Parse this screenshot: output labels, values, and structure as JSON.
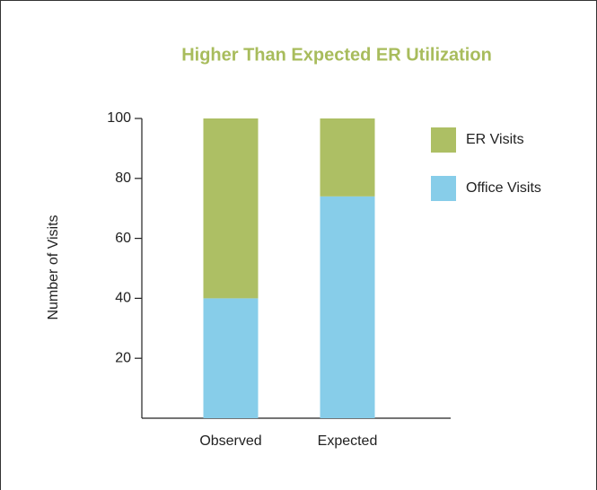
{
  "chart_data": {
    "type": "stacked_bar",
    "title": "Higher Than Expected ER Utilization",
    "y_label": "Number of Visits",
    "categories": [
      "Observed",
      "Expected"
    ],
    "series": [
      {
        "name": "Office Visits",
        "color": "#87cde9",
        "values": [
          40,
          74
        ]
      },
      {
        "name": "ER Visits",
        "color": "#adbf64",
        "values": [
          60,
          26
        ]
      }
    ],
    "ylim": [
      0,
      100
    ],
    "yticks": [
      20,
      40,
      60,
      80,
      100
    ],
    "grid": false
  }
}
